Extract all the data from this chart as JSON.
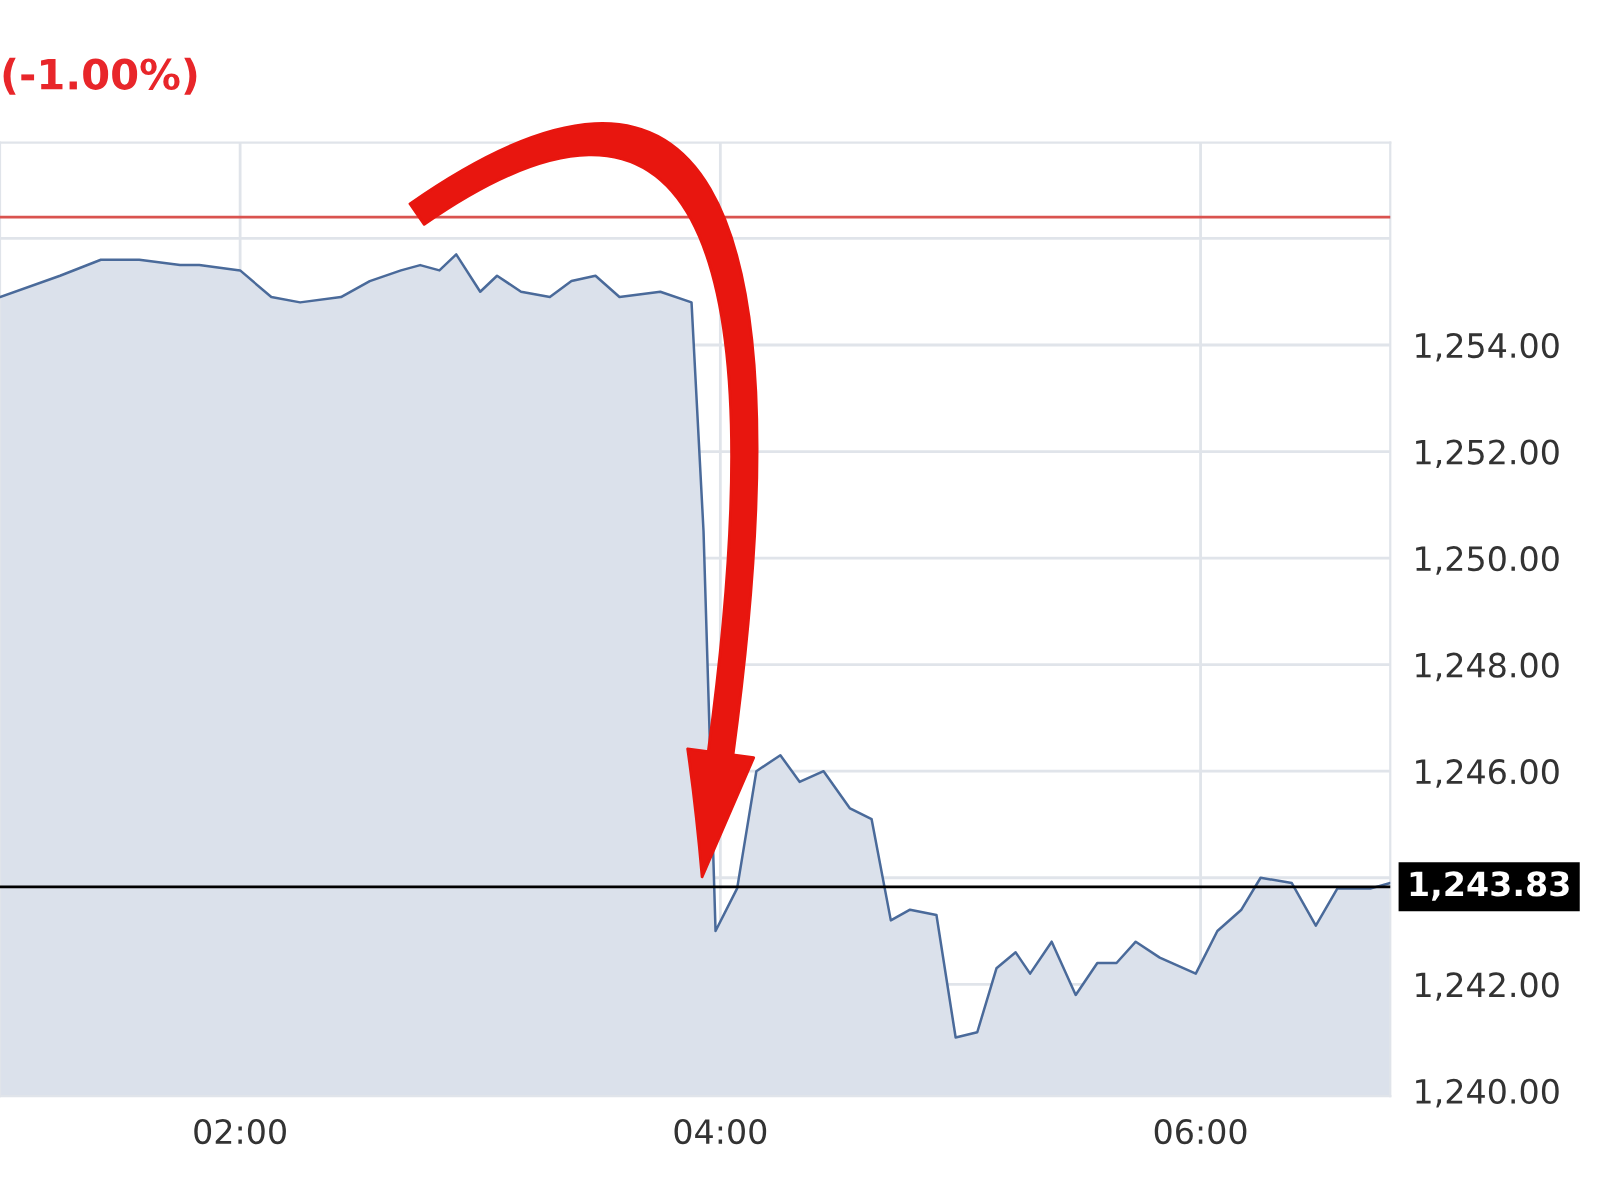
{
  "chart_data": {
    "type": "area",
    "title": "(-1.00%)",
    "x": [
      1.0,
      1.25,
      1.42,
      1.58,
      1.75,
      1.83,
      2.0,
      2.13,
      2.25,
      2.42,
      2.54,
      2.67,
      2.75,
      2.83,
      2.9,
      3.0,
      3.07,
      3.17,
      3.29,
      3.38,
      3.48,
      3.58,
      3.75,
      3.88,
      3.93,
      3.98,
      4.07,
      4.15,
      4.25,
      4.33,
      4.43,
      4.54,
      4.63,
      4.71,
      4.79,
      4.9,
      4.98,
      5.07,
      5.15,
      5.23,
      5.29,
      5.38,
      5.48,
      5.57,
      5.65,
      5.73,
      5.83,
      5.98,
      6.07,
      6.17,
      6.25,
      6.38,
      6.48,
      6.57,
      6.71,
      6.79
    ],
    "series": [
      {
        "color": "#4a6a9a",
        "values": [
          1254.9,
          1255.3,
          1255.6,
          1255.6,
          1255.5,
          1255.5,
          1255.4,
          1254.9,
          1254.8,
          1254.9,
          1255.2,
          1255.4,
          1255.5,
          1255.4,
          1255.7,
          1255.0,
          1255.3,
          1255.0,
          1254.9,
          1255.2,
          1255.3,
          1254.9,
          1255.0,
          1254.8,
          1250.5,
          1243.0,
          1243.8,
          1246.0,
          1246.3,
          1245.8,
          1246.0,
          1245.3,
          1245.1,
          1243.2,
          1243.4,
          1243.3,
          1241.0,
          1241.1,
          1242.3,
          1242.6,
          1242.2,
          1242.8,
          1241.8,
          1242.4,
          1242.4,
          1242.8,
          1242.5,
          1242.2,
          1243.0,
          1243.4,
          1244.0,
          1243.9,
          1243.1,
          1243.8,
          1243.8,
          1243.9
        ]
      }
    ],
    "xlim": [
      1.0,
      6.79
    ],
    "xticks": [
      {
        "value": 2,
        "label": "02:00"
      },
      {
        "value": 4,
        "label": "04:00"
      },
      {
        "value": 6,
        "label": "06:00"
      }
    ],
    "ylim": [
      1239.9,
      1257.8
    ],
    "yticks": [
      {
        "value": 1240,
        "label": "1,240.00"
      },
      {
        "value": 1242,
        "label": "1,242.00"
      },
      {
        "value": 1244,
        "label": null
      },
      {
        "value": 1246,
        "label": "1,246.00"
      },
      {
        "value": 1248,
        "label": "1,248.00"
      },
      {
        "value": 1250,
        "label": "1,250.00"
      },
      {
        "value": 1252,
        "label": "1,252.00"
      },
      {
        "value": 1254,
        "label": "1,254.00"
      },
      {
        "value": 1256,
        "label": null
      }
    ],
    "ref_lines": [
      {
        "axis": "y",
        "value": 1256.4,
        "color": "#d9534f"
      },
      {
        "axis": "y",
        "value": 1243.83,
        "label": "1,243.83",
        "color": "#000000"
      }
    ],
    "grid": true
  }
}
